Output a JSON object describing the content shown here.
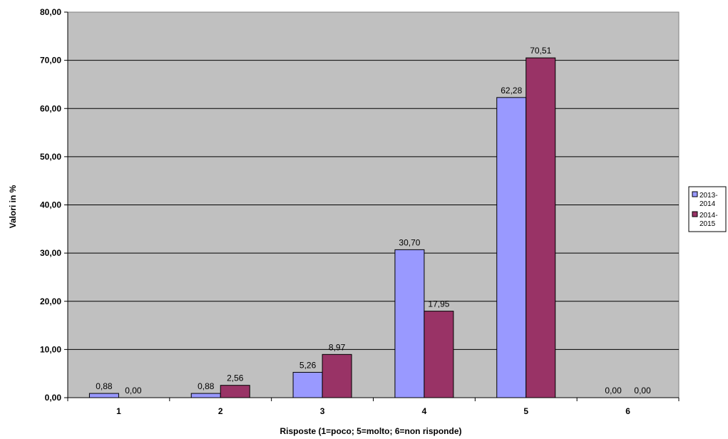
{
  "chart_data": {
    "type": "bar",
    "xlabel": "Risposte (1=poco; 5=molto; 6=non risponde)",
    "ylabel": "Valori in %",
    "categories": [
      "1",
      "2",
      "3",
      "4",
      "5",
      "6"
    ],
    "ylim": [
      0,
      80
    ],
    "yticks": [
      "0,00",
      "10,00",
      "20,00",
      "30,00",
      "40,00",
      "50,00",
      "60,00",
      "70,00",
      "80,00"
    ],
    "grid": true,
    "legend_position": "right",
    "series": [
      {
        "name_lines": [
          "2013-",
          "2014"
        ],
        "color": "#9999ff",
        "values": [
          0.88,
          0.88,
          5.26,
          30.7,
          62.28,
          0.0
        ],
        "labels": [
          "0,88",
          "0,88",
          "5,26",
          "30,70",
          "62,28",
          "0,00"
        ]
      },
      {
        "name_lines": [
          "2014-",
          "2015"
        ],
        "color": "#993366",
        "values": [
          0.0,
          2.56,
          8.97,
          17.95,
          70.51,
          0.0
        ],
        "labels": [
          "0,00",
          "2,56",
          "8,97",
          "17,95",
          "70,51",
          "0,00"
        ]
      }
    ],
    "plot_background": "#c0c0c0"
  }
}
